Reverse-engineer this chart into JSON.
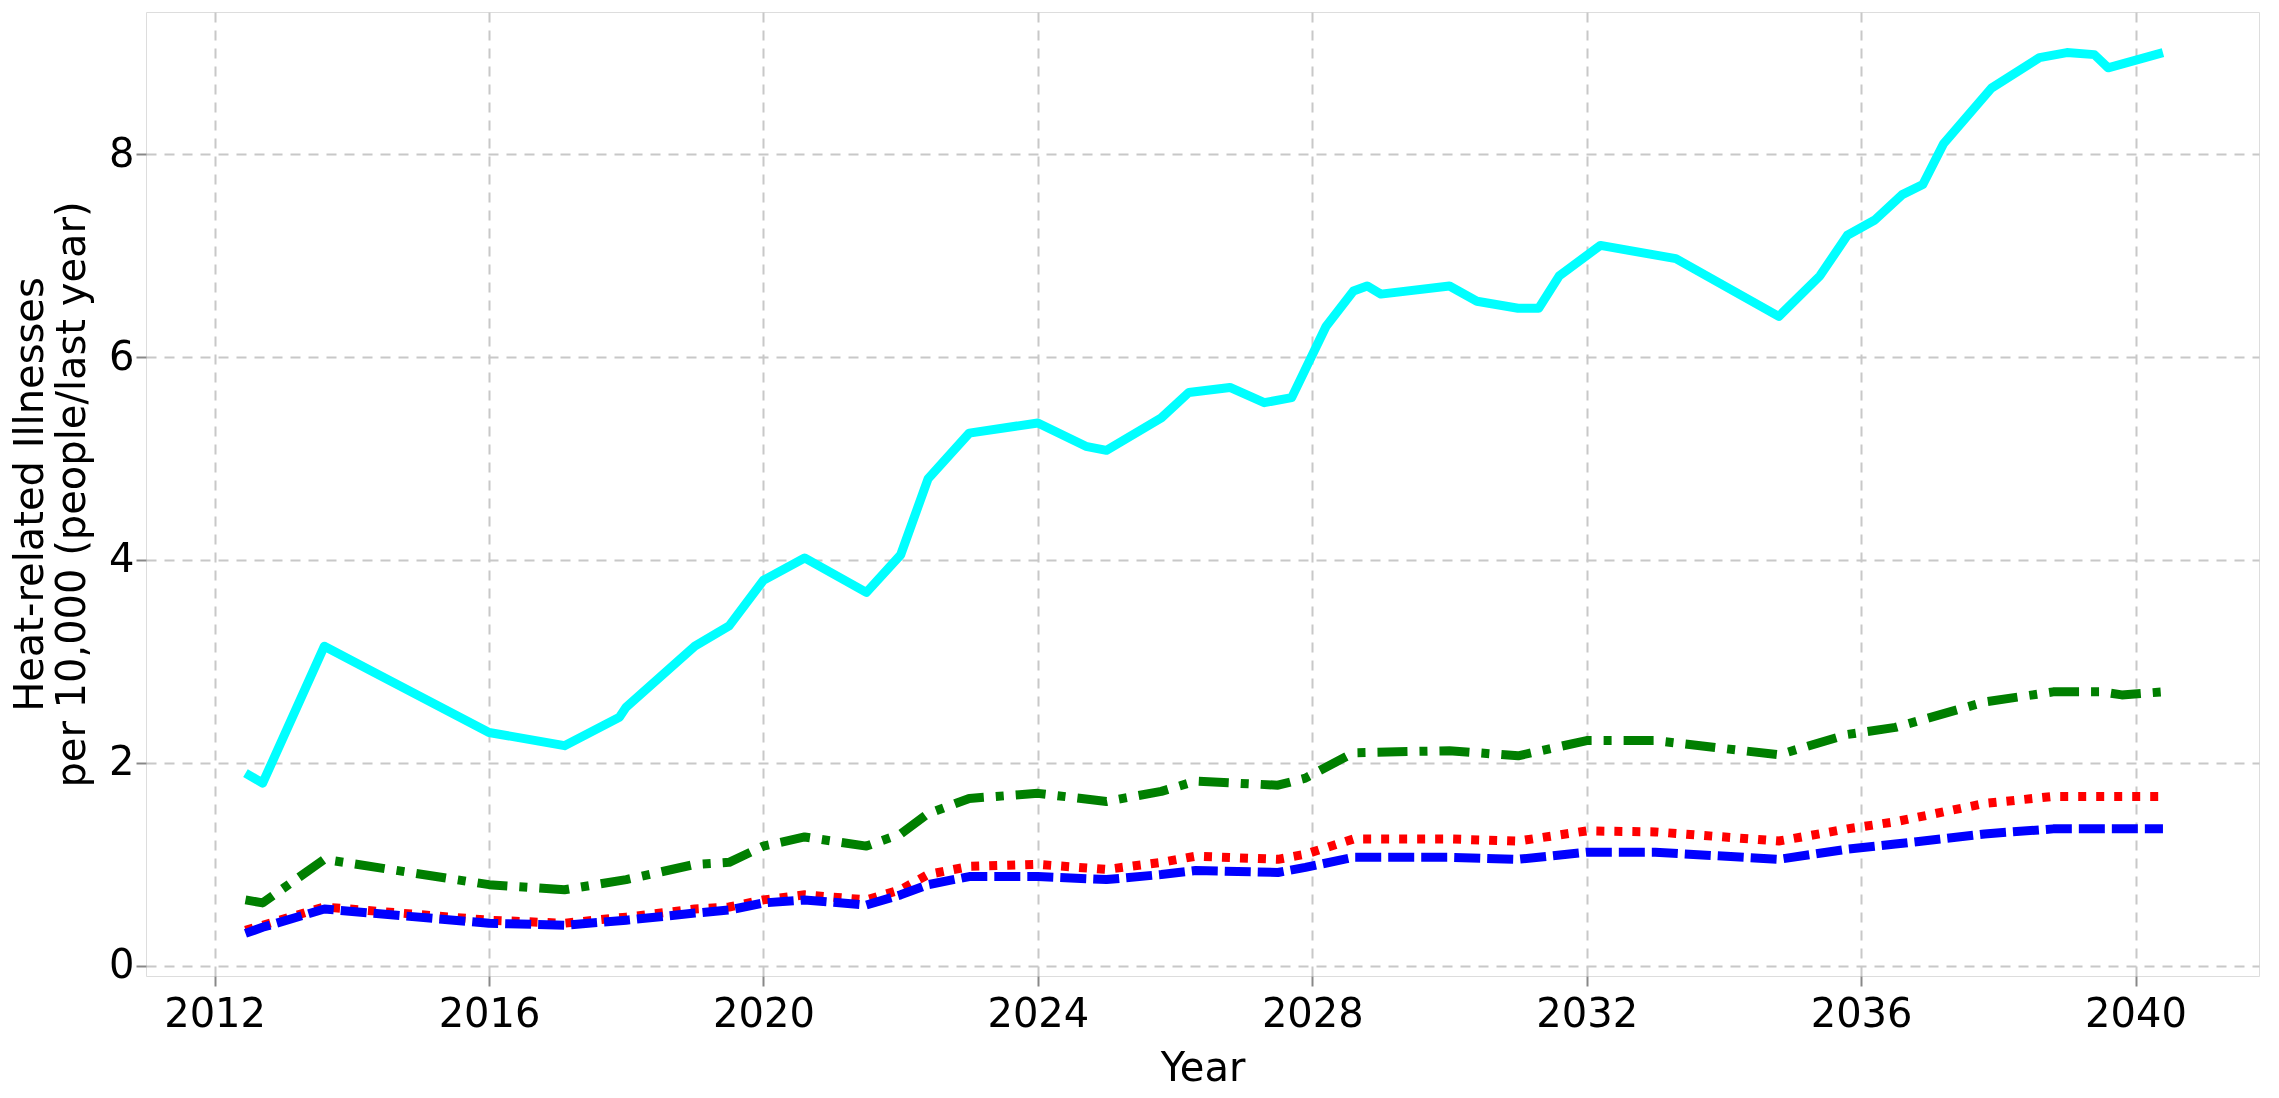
{
  "chart_data": {
    "type": "line",
    "xlabel": "Year",
    "ylabel": "Heat-related Illnesses\nper 10,000 (people/last year)",
    "xlim": [
      2011,
      2041.8
    ],
    "ylim": [
      -0.1,
      9.4
    ],
    "xticks": [
      2012,
      2016,
      2020,
      2024,
      2028,
      2032,
      2036,
      2040
    ],
    "yticks": [
      0,
      2,
      4,
      6,
      8
    ],
    "grid": true,
    "marker": "none",
    "series": [
      {
        "color": "#00ffff",
        "line_style": "solid",
        "x": [
          2012.45,
          2012.7,
          2013.6,
          2014.3,
          2016,
          2017.1,
          2017.9,
          2018,
          2019,
          2019.5,
          2020,
          2020.6,
          2021.5,
          2022,
          2022.4,
          2023,
          2024,
          2024.7,
          2025,
          2025.8,
          2026.2,
          2026.8,
          2027.3,
          2027.7,
          2028.2,
          2028.6,
          2028.8,
          2029,
          2030,
          2030.4,
          2031,
          2031.3,
          2031.6,
          2032.2,
          2033.3,
          2034.8,
          2035.4,
          2035.8,
          2036.2,
          2036.6,
          2036.9,
          2037.2,
          2037.9,
          2038.6,
          2039,
          2039.4,
          2039.6,
          2040.4
        ],
        "values": [
          1.9,
          1.8,
          3.15,
          2.9,
          2.3,
          2.17,
          2.45,
          2.55,
          3.15,
          3.35,
          3.8,
          4.02,
          3.68,
          4.05,
          4.8,
          5.25,
          5.35,
          5.12,
          5.08,
          5.4,
          5.65,
          5.7,
          5.55,
          5.6,
          6.3,
          6.65,
          6.7,
          6.62,
          6.7,
          6.55,
          6.48,
          6.48,
          6.8,
          7.1,
          6.97,
          6.4,
          6.8,
          7.2,
          7.35,
          7.6,
          7.7,
          8.1,
          8.65,
          8.95,
          9.0,
          8.98,
          8.85,
          9.0
        ]
      },
      {
        "color": "#007f00",
        "line_style": "dashdot",
        "x": [
          2012.45,
          2012.7,
          2013.6,
          2016,
          2017.1,
          2018,
          2019,
          2019.5,
          2020,
          2020.6,
          2021.5,
          2022,
          2022.4,
          2023,
          2024,
          2025,
          2025.8,
          2026.3,
          2027.5,
          2027.9,
          2028.6,
          2030,
          2031,
          2032,
          2033,
          2034.8,
          2035.8,
          2036.5,
          2037.8,
          2038.8,
          2039.5,
          2039.8,
          2040.4
        ],
        "values": [
          0.65,
          0.62,
          1.05,
          0.8,
          0.75,
          0.85,
          1.0,
          1.02,
          1.18,
          1.27,
          1.18,
          1.3,
          1.5,
          1.65,
          1.7,
          1.62,
          1.72,
          1.82,
          1.78,
          1.85,
          2.1,
          2.12,
          2.07,
          2.22,
          2.22,
          2.08,
          2.28,
          2.35,
          2.6,
          2.7,
          2.7,
          2.67,
          2.7
        ]
      },
      {
        "color": "#ff0000",
        "line_style": "dotted",
        "x": [
          2012.45,
          2012.7,
          2013.6,
          2016,
          2017.1,
          2018,
          2019,
          2019.5,
          2020,
          2020.6,
          2021.5,
          2022,
          2022.4,
          2023,
          2024,
          2025,
          2025.8,
          2026.3,
          2027.5,
          2027.9,
          2028.6,
          2030,
          2031,
          2032,
          2033,
          2034.8,
          2035.8,
          2036.5,
          2037.8,
          2038.8,
          2039.5,
          2040.4
        ],
        "values": [
          0.35,
          0.4,
          0.58,
          0.45,
          0.42,
          0.48,
          0.56,
          0.58,
          0.65,
          0.7,
          0.65,
          0.75,
          0.9,
          0.98,
          1.0,
          0.95,
          1.02,
          1.08,
          1.05,
          1.1,
          1.25,
          1.25,
          1.23,
          1.33,
          1.32,
          1.23,
          1.35,
          1.42,
          1.6,
          1.67,
          1.67,
          1.67
        ]
      },
      {
        "color": "#0000ff",
        "line_style": "dashed",
        "x": [
          2012.45,
          2012.7,
          2013.6,
          2016,
          2017.1,
          2018,
          2019,
          2019.5,
          2020,
          2020.6,
          2021.5,
          2022,
          2022.4,
          2023,
          2024,
          2025,
          2025.8,
          2026.3,
          2027.5,
          2027.9,
          2028.6,
          2030,
          2031,
          2032,
          2033,
          2034.8,
          2035.8,
          2036.5,
          2037.8,
          2038.8,
          2039.5,
          2040.4
        ],
        "values": [
          0.32,
          0.38,
          0.56,
          0.42,
          0.4,
          0.45,
          0.52,
          0.55,
          0.62,
          0.65,
          0.6,
          0.7,
          0.8,
          0.88,
          0.88,
          0.85,
          0.9,
          0.94,
          0.92,
          0.97,
          1.07,
          1.07,
          1.05,
          1.12,
          1.12,
          1.05,
          1.15,
          1.2,
          1.3,
          1.35,
          1.35,
          1.35
        ]
      }
    ]
  }
}
